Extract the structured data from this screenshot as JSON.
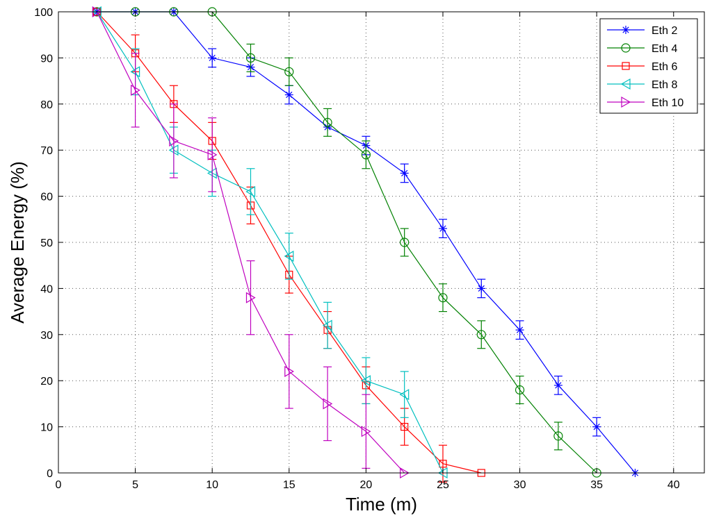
{
  "chart_data": {
    "type": "line",
    "title": "",
    "xlabel": "Time (m)",
    "ylabel": "Average Energy (%)",
    "xlim": [
      0,
      42
    ],
    "ylim": [
      0,
      100
    ],
    "xticks": [
      0,
      5,
      10,
      15,
      20,
      25,
      30,
      35,
      40
    ],
    "yticks": [
      0,
      10,
      20,
      30,
      40,
      50,
      60,
      70,
      80,
      90,
      100
    ],
    "grid": true,
    "legend_position": "top-right",
    "series": [
      {
        "name": "Eth 2",
        "color": "#0000ff",
        "marker": "asterisk",
        "x": [
          2.5,
          5,
          7.5,
          10,
          12.5,
          15,
          17.5,
          20,
          22.5,
          25,
          27.5,
          30,
          32.5,
          35,
          37.5
        ],
        "y": [
          100,
          100,
          100,
          90,
          88,
          82,
          75,
          71,
          65,
          53,
          40,
          31,
          19,
          10,
          0
        ],
        "err": [
          0,
          0,
          0,
          2,
          2,
          2,
          0,
          2,
          2,
          2,
          2,
          2,
          2,
          2,
          0
        ]
      },
      {
        "name": "Eth 4",
        "color": "#008000",
        "marker": "circle",
        "x": [
          2.5,
          5,
          7.5,
          10,
          12.5,
          15,
          17.5,
          20,
          22.5,
          25,
          27.5,
          30,
          32.5,
          35
        ],
        "y": [
          100,
          100,
          100,
          100,
          90,
          87,
          76,
          69,
          50,
          38,
          30,
          18,
          8,
          0
        ],
        "err": [
          0,
          0,
          0,
          0,
          3,
          3,
          3,
          3,
          3,
          3,
          3,
          3,
          3,
          0
        ]
      },
      {
        "name": "Eth 6",
        "color": "#ff0000",
        "marker": "square",
        "x": [
          2.5,
          5,
          7.5,
          10,
          12.5,
          15,
          17.5,
          20,
          22.5,
          25,
          27.5
        ],
        "y": [
          100,
          91,
          80,
          72,
          58,
          43,
          31,
          19,
          10,
          2,
          0
        ],
        "err": [
          0,
          4,
          4,
          4,
          4,
          4,
          4,
          4,
          4,
          4,
          0
        ]
      },
      {
        "name": "Eth 8",
        "color": "#00bfbf",
        "marker": "triangle-left",
        "x": [
          2.5,
          5,
          7.5,
          10,
          12.5,
          15,
          17.5,
          20,
          22.5,
          25
        ],
        "y": [
          100,
          87,
          70,
          65,
          61,
          47,
          32,
          20,
          17,
          0
        ],
        "err": [
          0,
          5,
          5,
          5,
          5,
          5,
          5,
          5,
          5,
          0
        ]
      },
      {
        "name": "Eth 10",
        "color": "#bf00bf",
        "marker": "triangle-right",
        "x": [
          2.5,
          5,
          7.5,
          10,
          12.5,
          15,
          17.5,
          20,
          22.5
        ],
        "y": [
          100,
          83,
          72,
          69,
          38,
          22,
          15,
          9,
          0
        ],
        "err": [
          0,
          8,
          8,
          8,
          8,
          8,
          8,
          8,
          0
        ]
      }
    ]
  }
}
